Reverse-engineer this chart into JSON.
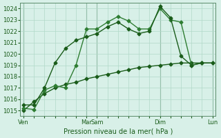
{
  "bg_color": "#d8f0e8",
  "grid_color": "#b0d8c8",
  "line_color_dark": "#1a5c1a",
  "line_color_mid": "#2e7d32",
  "ylabel_text": "Pression niveau de la mer( hPa )",
  "ylim": [
    1014.5,
    1024.5
  ],
  "yticks": [
    1015,
    1016,
    1017,
    1018,
    1019,
    1020,
    1021,
    1022,
    1023,
    1024
  ],
  "xtick_labels": [
    "Ven",
    "",
    "",
    "",
    "",
    "",
    "Mar",
    "Sam",
    "",
    "",
    "",
    "",
    "",
    "Dim",
    "",
    "",
    "",
    "",
    "Lun"
  ],
  "xtick_positions": [
    0,
    1,
    2,
    3,
    4,
    5,
    6,
    7,
    8,
    9,
    10,
    11,
    12,
    13,
    14,
    15,
    16,
    17,
    18
  ],
  "vline_positions": [
    0,
    6,
    7,
    13,
    18
  ],
  "series1_x": [
    0,
    1,
    2,
    3,
    4,
    5,
    6,
    7,
    8,
    9,
    10,
    11,
    12,
    13,
    14,
    15,
    16,
    17
  ],
  "series1_y": [
    1015.2,
    1015.1,
    1016.8,
    1017.2,
    1017.0,
    1019.0,
    1022.2,
    1022.2,
    1022.8,
    1023.3,
    1022.9,
    1022.2,
    1022.2,
    1024.0,
    1023.0,
    1022.8,
    1019.0,
    1019.2
  ],
  "series2_x": [
    0,
    1,
    2,
    3,
    4,
    5,
    6,
    7,
    8,
    9,
    10,
    11,
    12,
    13,
    14,
    15,
    16,
    17,
    18
  ],
  "series2_y": [
    1015.5,
    1015.5,
    1017.0,
    1019.2,
    1020.5,
    1021.2,
    1021.5,
    1021.8,
    1022.4,
    1022.8,
    1022.2,
    1021.8,
    1022.0,
    1024.2,
    1023.2,
    1019.8,
    1019.0,
    1019.2,
    1019.2
  ],
  "series3_x": [
    0,
    1,
    2,
    3,
    4,
    5,
    6,
    7,
    8,
    9,
    10,
    11,
    12,
    13,
    14,
    15,
    16,
    17,
    18
  ],
  "series3_y": [
    1015.0,
    1015.8,
    1016.5,
    1017.0,
    1017.3,
    1017.5,
    1017.8,
    1018.0,
    1018.2,
    1018.4,
    1018.6,
    1018.8,
    1018.9,
    1019.0,
    1019.1,
    1019.2,
    1019.2,
    1019.2,
    1019.2
  ]
}
